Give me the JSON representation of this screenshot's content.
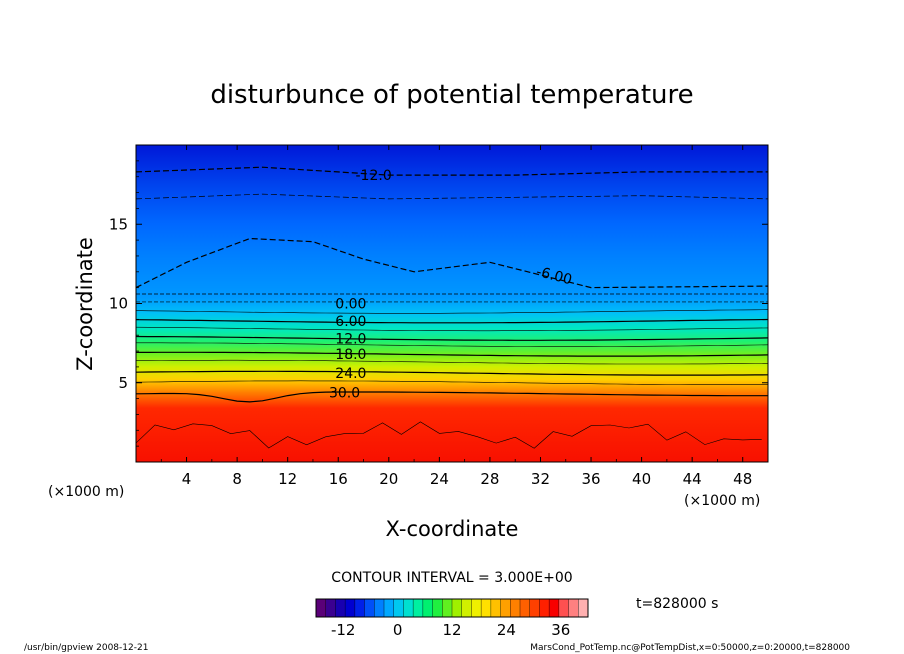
{
  "chart_data": {
    "type": "heatmap",
    "title": "disturbunce of potential temperature",
    "xlabel": "X-coordinate",
    "ylabel": "Z-coordinate",
    "x_unit_left": "(×1000 m)",
    "x_unit_right": "(×1000 m)",
    "xlim": [
      0,
      50
    ],
    "ylim": [
      0,
      20
    ],
    "x_ticks": [
      4,
      8,
      12,
      16,
      20,
      24,
      28,
      32,
      36,
      40,
      44,
      48
    ],
    "y_ticks": [
      5,
      10,
      15
    ],
    "contour_interval_text": "CONTOUR INTERVAL = 3.000E+00",
    "time_text": "t=828000 s",
    "colorbar": {
      "range": [
        -18,
        42
      ],
      "ticks": [
        -12,
        0,
        12,
        24,
        36
      ],
      "colors": [
        "#5a0078",
        "#3a0090",
        "#1800b0",
        "#0000d0",
        "#0020e8",
        "#0050f8",
        "#0080ff",
        "#00a8ff",
        "#00c8f0",
        "#00e0d0",
        "#00f0a0",
        "#00f070",
        "#20f040",
        "#60f020",
        "#a0f000",
        "#d0f000",
        "#f0f000",
        "#ffe000",
        "#ffc000",
        "#ffa000",
        "#ff8000",
        "#ff6000",
        "#ff4000",
        "#ff2000",
        "#f80000",
        "#ff5050",
        "#ff8080",
        "#ffb0b0"
      ]
    },
    "contour_labels": [
      {
        "text": "-12.0",
        "x": 18.8,
        "z": 18.1
      },
      {
        "text": "-6.00",
        "x": 33.0,
        "z": 11.8
      },
      {
        "text": "0.00",
        "x": 17.0,
        "z": 10.0
      },
      {
        "text": "6.00",
        "x": 17.0,
        "z": 8.9
      },
      {
        "text": "12.0",
        "x": 17.0,
        "z": 7.8
      },
      {
        "text": "18.0",
        "x": 17.0,
        "z": 6.8
      },
      {
        "text": "24.0",
        "x": 17.0,
        "z": 5.6
      },
      {
        "text": "30.0",
        "x": 16.5,
        "z": 4.4
      }
    ]
  },
  "footer": {
    "left": "/usr/bin/gpview   2008-12-21",
    "right": "MarsCond_PotTemp.nc@PotTempDist,x=0:50000,z=0:20000,t=828000"
  }
}
